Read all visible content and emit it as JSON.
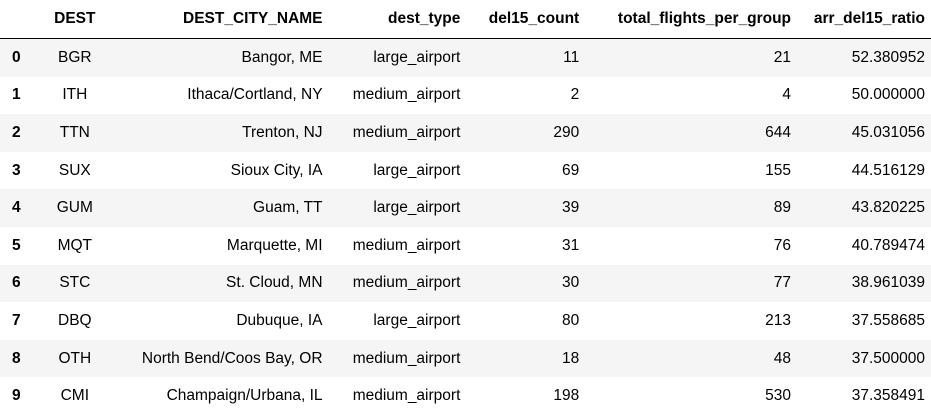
{
  "table": {
    "columns": [
      "",
      "DEST",
      "DEST_CITY_NAME",
      "dest_type",
      "del15_count",
      "total_flights_per_group",
      "arr_del15_ratio"
    ],
    "rows": [
      {
        "index": "0",
        "dest": "BGR",
        "city": "Bangor, ME",
        "type": "large_airport",
        "del15": "11",
        "total": "21",
        "ratio": "52.380952"
      },
      {
        "index": "1",
        "dest": "ITH",
        "city": "Ithaca/Cortland, NY",
        "type": "medium_airport",
        "del15": "2",
        "total": "4",
        "ratio": "50.000000"
      },
      {
        "index": "2",
        "dest": "TTN",
        "city": "Trenton, NJ",
        "type": "medium_airport",
        "del15": "290",
        "total": "644",
        "ratio": "45.031056"
      },
      {
        "index": "3",
        "dest": "SUX",
        "city": "Sioux City, IA",
        "type": "large_airport",
        "del15": "69",
        "total": "155",
        "ratio": "44.516129"
      },
      {
        "index": "4",
        "dest": "GUM",
        "city": "Guam, TT",
        "type": "large_airport",
        "del15": "39",
        "total": "89",
        "ratio": "43.820225"
      },
      {
        "index": "5",
        "dest": "MQT",
        "city": "Marquette, MI",
        "type": "medium_airport",
        "del15": "31",
        "total": "76",
        "ratio": "40.789474"
      },
      {
        "index": "6",
        "dest": "STC",
        "city": "St. Cloud, MN",
        "type": "medium_airport",
        "del15": "30",
        "total": "77",
        "ratio": "38.961039"
      },
      {
        "index": "7",
        "dest": "DBQ",
        "city": "Dubuque, IA",
        "type": "large_airport",
        "del15": "80",
        "total": "213",
        "ratio": "37.558685"
      },
      {
        "index": "8",
        "dest": "OTH",
        "city": "North Bend/Coos Bay, OR",
        "type": "medium_airport",
        "del15": "18",
        "total": "48",
        "ratio": "37.500000"
      },
      {
        "index": "9",
        "dest": "CMI",
        "city": "Champaign/Urbana, IL",
        "type": "medium_airport",
        "del15": "198",
        "total": "530",
        "ratio": "37.358491"
      }
    ]
  }
}
